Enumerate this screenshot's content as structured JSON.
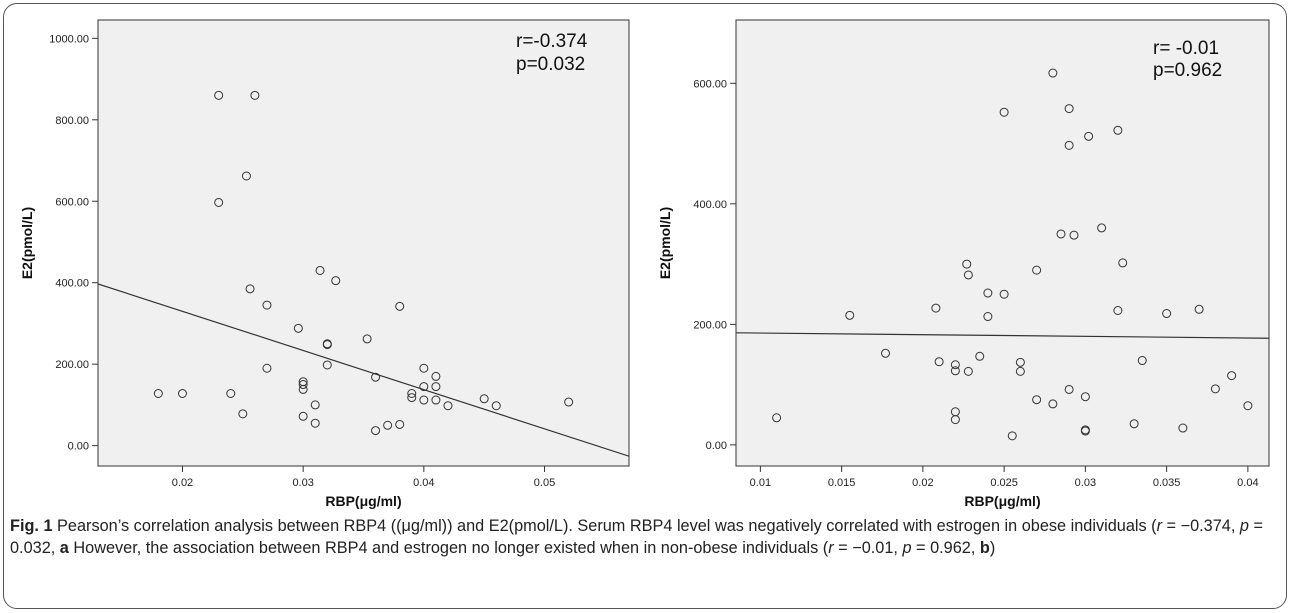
{
  "figure_label": "Fig. 1",
  "caption": {
    "s1": " Pearson’s correlation analysis between RBP4 ((μg/ml)) and E2(pmol/L). Serum RBP4 level was negatively correlated with estrogen in obese individuals (",
    "r1": "r",
    "eq_r1": " = −0.374, ",
    "p1": "p",
    "eq_p1": " = 0.032, ",
    "a": "a",
    "s2": " However, the association between RBP4 and estrogen no longer existed when in non-obese individuals (",
    "r2": "r",
    "eq_r2": " = −0.01, ",
    "p2": "p",
    "eq_p2": " = 0.962, ",
    "b": "b",
    "s3": ")"
  },
  "chart_data": [
    {
      "type": "scatter",
      "panel": "a",
      "xlabel": "RBP(μg/ml)",
      "ylabel": "E2(pmol/L)",
      "xlim": [
        0.013,
        0.057
      ],
      "ylim": [
        -50,
        1045
      ],
      "xticks": [
        0.02,
        0.03,
        0.04,
        0.05
      ],
      "xtick_labels": [
        "0.02",
        "0.03",
        "0.04",
        "0.05"
      ],
      "yticks": [
        0,
        200,
        400,
        600,
        800,
        1000
      ],
      "ytick_labels": [
        "0.00",
        "200.00",
        "400.00",
        "600.00",
        "800.00",
        "1000.00"
      ],
      "annotation": [
        "r=-0.374",
        "p=0.032"
      ],
      "fit_line": [
        [
          0.013,
          397
        ],
        [
          0.057,
          -26
        ]
      ],
      "points": [
        [
          0.018,
          128
        ],
        [
          0.02,
          128
        ],
        [
          0.023,
          860
        ],
        [
          0.023,
          597
        ],
        [
          0.024,
          128
        ],
        [
          0.025,
          78
        ],
        [
          0.0253,
          662
        ],
        [
          0.0256,
          385
        ],
        [
          0.026,
          860
        ],
        [
          0.027,
          345
        ],
        [
          0.027,
          190
        ],
        [
          0.0296,
          288
        ],
        [
          0.03,
          157
        ],
        [
          0.03,
          150
        ],
        [
          0.03,
          138
        ],
        [
          0.03,
          72
        ],
        [
          0.031,
          100
        ],
        [
          0.031,
          55
        ],
        [
          0.0314,
          430
        ],
        [
          0.032,
          250
        ],
        [
          0.032,
          248
        ],
        [
          0.032,
          198
        ],
        [
          0.0327,
          405
        ],
        [
          0.0353,
          262
        ],
        [
          0.036,
          168
        ],
        [
          0.036,
          37
        ],
        [
          0.037,
          50
        ],
        [
          0.038,
          342
        ],
        [
          0.038,
          52
        ],
        [
          0.039,
          128
        ],
        [
          0.039,
          118
        ],
        [
          0.04,
          190
        ],
        [
          0.04,
          145
        ],
        [
          0.04,
          112
        ],
        [
          0.041,
          170
        ],
        [
          0.041,
          145
        ],
        [
          0.041,
          112
        ],
        [
          0.042,
          98
        ],
        [
          0.045,
          115
        ],
        [
          0.046,
          98
        ],
        [
          0.052,
          107
        ]
      ]
    },
    {
      "type": "scatter",
      "panel": "b",
      "xlabel": "RBP(μg/ml)",
      "ylabel": "E2(pmol/L)",
      "xlim": [
        0.0085,
        0.0413
      ],
      "ylim": [
        -35,
        705
      ],
      "xticks": [
        0.01,
        0.015,
        0.02,
        0.025,
        0.03,
        0.035,
        0.04
      ],
      "xtick_labels": [
        "0.01",
        "0.015",
        "0.02",
        "0.025",
        "0.03",
        "0.035",
        "0.04"
      ],
      "yticks": [
        0,
        200,
        400,
        600
      ],
      "ytick_labels": [
        "0.00",
        "200.00",
        "400.00",
        "600.00"
      ],
      "annotation": [
        "r= -0.01",
        "p=0.962"
      ],
      "fit_line": [
        [
          0.0085,
          186
        ],
        [
          0.0413,
          177
        ]
      ],
      "points": [
        [
          0.011,
          45
        ],
        [
          0.0155,
          215
        ],
        [
          0.0177,
          152
        ],
        [
          0.0208,
          227
        ],
        [
          0.021,
          138
        ],
        [
          0.022,
          133
        ],
        [
          0.022,
          123
        ],
        [
          0.022,
          55
        ],
        [
          0.022,
          42
        ],
        [
          0.0227,
          300
        ],
        [
          0.0228,
          282
        ],
        [
          0.0228,
          122
        ],
        [
          0.0235,
          147
        ],
        [
          0.024,
          252
        ],
        [
          0.024,
          213
        ],
        [
          0.025,
          250
        ],
        [
          0.025,
          552
        ],
        [
          0.0255,
          15
        ],
        [
          0.026,
          137
        ],
        [
          0.026,
          122
        ],
        [
          0.027,
          290
        ],
        [
          0.027,
          75
        ],
        [
          0.028,
          617
        ],
        [
          0.028,
          68
        ],
        [
          0.0285,
          350
        ],
        [
          0.029,
          558
        ],
        [
          0.029,
          497
        ],
        [
          0.029,
          92
        ],
        [
          0.0293,
          348
        ],
        [
          0.03,
          80
        ],
        [
          0.03,
          25
        ],
        [
          0.03,
          23
        ],
        [
          0.0302,
          512
        ],
        [
          0.031,
          360
        ],
        [
          0.032,
          522
        ],
        [
          0.032,
          223
        ],
        [
          0.0323,
          302
        ],
        [
          0.033,
          35
        ],
        [
          0.0335,
          140
        ],
        [
          0.035,
          218
        ],
        [
          0.036,
          28
        ],
        [
          0.037,
          225
        ],
        [
          0.038,
          93
        ],
        [
          0.039,
          115
        ],
        [
          0.04,
          65
        ]
      ]
    }
  ]
}
